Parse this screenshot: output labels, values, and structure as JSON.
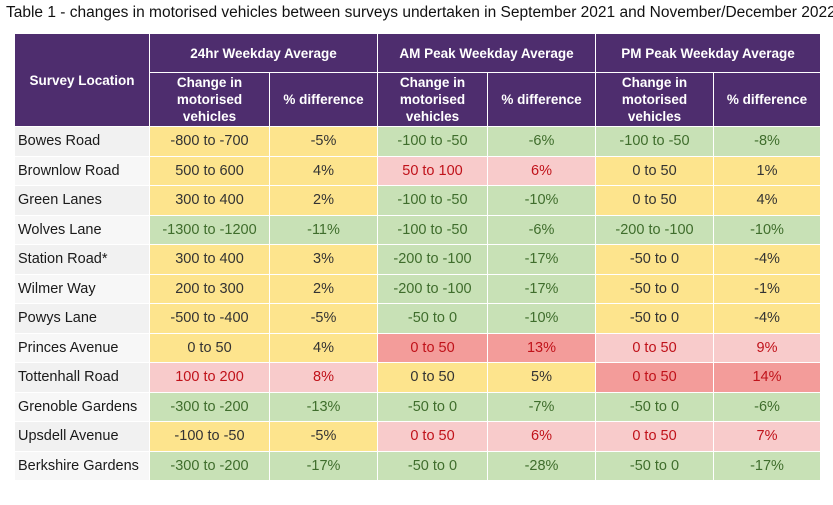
{
  "caption": "Table 1 -  changes in motorised vehicles between surveys undertaken in September 2021 and November/December 2022",
  "header": {
    "location": "Survey Location",
    "groups": [
      "24hr Weekday Average",
      "AM Peak Weekday Average",
      "PM Peak Weekday Average"
    ],
    "change": "Change in motorised vehicles",
    "pct": "% difference"
  },
  "colors": {
    "header_bg": "#4e2d6e",
    "y": "#fde48d",
    "g": "#c8e1b6",
    "p": "#f8cbcb",
    "r": "#f39c9a"
  },
  "rows": [
    {
      "loc": "Bowes Road",
      "v": [
        "-800 to -700",
        "-5%",
        "-100 to -50",
        "-6%",
        "-100 to -50",
        "-8%"
      ],
      "c": [
        "y",
        "y",
        "g",
        "g",
        "g",
        "g"
      ]
    },
    {
      "loc": "Brownlow Road",
      "v": [
        "500 to 600",
        "4%",
        "50 to 100",
        "6%",
        "0 to 50",
        "1%"
      ],
      "c": [
        "y",
        "y",
        "p",
        "p",
        "y",
        "y"
      ]
    },
    {
      "loc": "Green Lanes",
      "v": [
        "300 to 400",
        "2%",
        "-100 to -50",
        "-10%",
        "0 to 50",
        "4%"
      ],
      "c": [
        "y",
        "y",
        "g",
        "g",
        "y",
        "y"
      ]
    },
    {
      "loc": "Wolves Lane",
      "v": [
        "-1300 to -1200",
        "-11%",
        "-100 to -50",
        "-6%",
        "-200 to -100",
        "-10%"
      ],
      "c": [
        "g",
        "g",
        "g",
        "g",
        "g",
        "g"
      ]
    },
    {
      "loc": "Station Road*",
      "v": [
        "300 to 400",
        "3%",
        "-200 to -100",
        "-17%",
        "-50 to 0",
        "-4%"
      ],
      "c": [
        "y",
        "y",
        "g",
        "g",
        "y",
        "y"
      ]
    },
    {
      "loc": "Wilmer Way",
      "v": [
        "200 to 300",
        "2%",
        "-200 to -100",
        "-17%",
        "-50 to 0",
        "-1%"
      ],
      "c": [
        "y",
        "y",
        "g",
        "g",
        "y",
        "y"
      ]
    },
    {
      "loc": "Powys Lane",
      "v": [
        "-500 to -400",
        "-5%",
        "-50 to 0",
        "-10%",
        "-50 to 0",
        "-4%"
      ],
      "c": [
        "y",
        "y",
        "g",
        "g",
        "y",
        "y"
      ]
    },
    {
      "loc": "Princes Avenue",
      "v": [
        "0 to 50",
        "4%",
        "0 to 50",
        "13%",
        "0 to 50",
        "9%"
      ],
      "c": [
        "y",
        "y",
        "r",
        "r",
        "p",
        "p"
      ]
    },
    {
      "loc": "Tottenhall Road",
      "v": [
        "100 to 200",
        "8%",
        "0 to 50",
        "5%",
        "0 to 50",
        "14%"
      ],
      "c": [
        "p",
        "p",
        "y",
        "y",
        "r",
        "r"
      ]
    },
    {
      "loc": "Grenoble Gardens",
      "v": [
        "-300 to -200",
        "-13%",
        "-50 to 0",
        "-7%",
        "-50 to 0",
        "-6%"
      ],
      "c": [
        "g",
        "g",
        "g",
        "g",
        "g",
        "g"
      ]
    },
    {
      "loc": "Upsdell Avenue",
      "v": [
        "-100 to -50",
        "-5%",
        "0 to 50",
        "6%",
        "0 to 50",
        "7%"
      ],
      "c": [
        "y",
        "y",
        "p",
        "p",
        "p",
        "p"
      ]
    },
    {
      "loc": "Berkshire Gardens",
      "v": [
        "-300 to -200",
        "-17%",
        "-50 to 0",
        "-28%",
        "-50 to 0",
        "-17%"
      ],
      "c": [
        "g",
        "g",
        "g",
        "g",
        "g",
        "g"
      ]
    }
  ]
}
